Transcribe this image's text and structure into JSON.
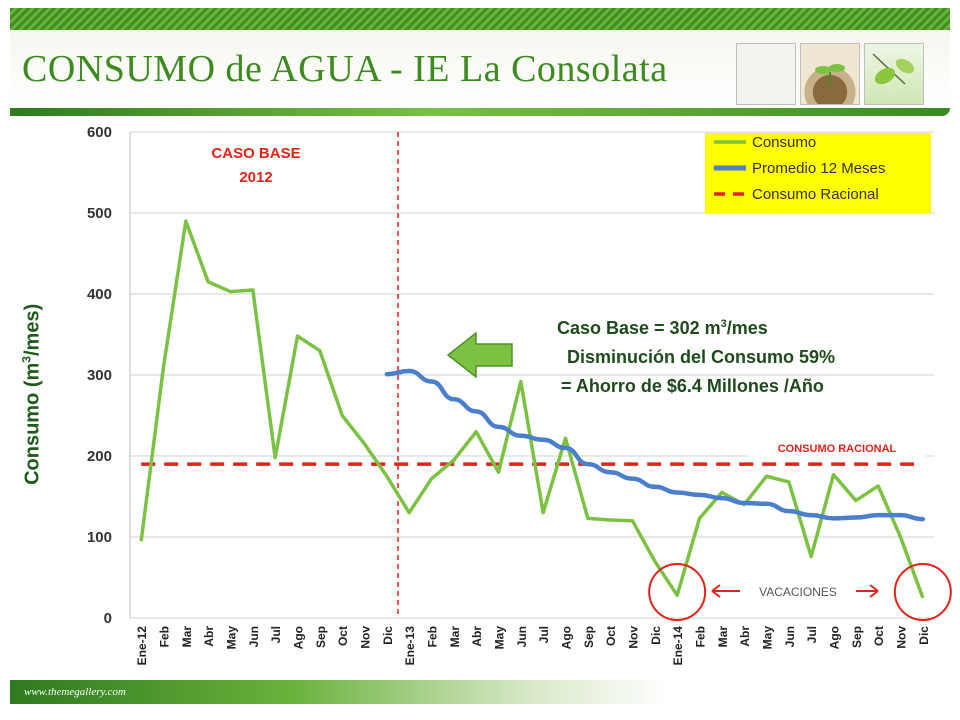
{
  "header": {
    "title": "CONSUMO de AGUA - IE La Consolata"
  },
  "footer": {
    "url": "www.themegallery.com"
  },
  "chart_data": {
    "type": "line",
    "ylabel_main": "Consumo (m",
    "ylabel_sup": "3",
    "ylabel_end": "/mes)",
    "ylim": [
      0,
      600
    ],
    "yticks": [
      "0",
      "100",
      "200",
      "300",
      "400",
      "500",
      "600"
    ],
    "grid": true,
    "legend_position": "top-right",
    "categories": [
      "Ene-12",
      "Feb",
      "Mar",
      "Abr",
      "May",
      "Jun",
      "Jul",
      "Ago",
      "Sep",
      "Oct",
      "Nov",
      "Dic",
      "Ene-13",
      "Feb",
      "Mar",
      "Abr",
      "May",
      "Jun",
      "Jul",
      "Ago",
      "Sep",
      "Oct",
      "Nov",
      "Dic",
      "Ene-14",
      "Feb",
      "Mar",
      "Abr",
      "May",
      "Jun",
      "Jul",
      "Ago",
      "Sep",
      "Oct",
      "Nov",
      "Dic"
    ],
    "series": [
      {
        "name": "Consumo",
        "color": "#7cc242",
        "values": [
          95,
          310,
          490,
          415,
          403,
          405,
          198,
          348,
          330,
          250,
          215,
          175,
          130,
          172,
          195,
          230,
          180,
          292,
          130,
          222,
          123,
          121,
          120,
          70,
          28,
          123,
          155,
          140,
          175,
          168,
          76,
          177,
          145,
          163,
          100,
          25
        ]
      },
      {
        "name": "Promedio 12 Meses",
        "color": "#4a7fcc",
        "values": [
          null,
          null,
          null,
          null,
          null,
          null,
          null,
          null,
          null,
          null,
          null,
          301,
          305,
          292,
          270,
          255,
          236,
          225,
          220,
          210,
          190,
          180,
          172,
          162,
          155,
          152,
          148,
          142,
          141,
          132,
          127,
          123,
          124,
          127,
          127,
          122
        ]
      },
      {
        "name": "Consumo Racional",
        "color": "#e2231a",
        "style": "dashed",
        "value": 190
      }
    ],
    "annotations": {
      "caso_base_line1": "CASO BASE",
      "caso_base_line2": "2012",
      "info_line1_a": "Caso Base = 302 m",
      "info_line1_sup": "3",
      "info_line1_b": "/mes",
      "info_line2": "Disminución del Consumo 59%",
      "info_line3": "= Ahorro de $6.4 Millones /Año",
      "racional_label": "CONSUMO RACIONAL",
      "vacaciones_label": "VACACIONES"
    }
  }
}
